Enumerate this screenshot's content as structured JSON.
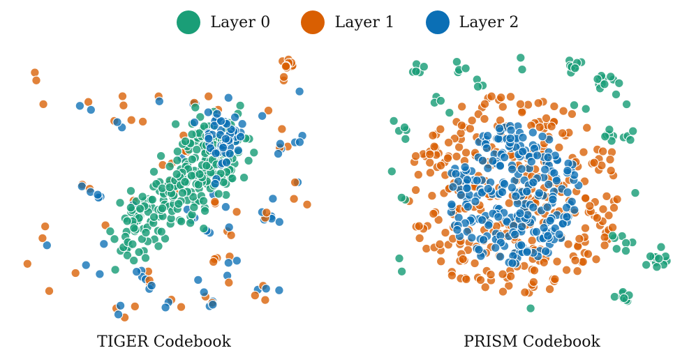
{
  "legend": [
    {
      "label": "Layer 0",
      "color": "#1a9e77"
    },
    {
      "label": "Layer 1",
      "color": "#d95f02"
    },
    {
      "label": "Layer 2",
      "color": "#0b6fb5"
    }
  ],
  "chart_data": [
    {
      "type": "scatter",
      "title": "TIGER Codebook",
      "description_scale": "t-SNE embedding, no axes",
      "grid": false,
      "legend_position": "top-center",
      "series": [
        {
          "name": "Layer 0",
          "color": "#1a9e77"
        },
        {
          "name": "Layer 1",
          "color": "#d95f02"
        },
        {
          "name": "Layer 2",
          "color": "#0b6fb5"
        }
      ]
    },
    {
      "type": "scatter",
      "title": "PRISM Codebook",
      "grid": false,
      "legend_position": "top-center",
      "series": [
        {
          "name": "Layer 0",
          "color": "#1a9e77"
        },
        {
          "name": "Layer 1",
          "color": "#d95f02"
        },
        {
          "name": "Layer 2",
          "color": "#0b6fb5"
        }
      ]
    }
  ]
}
